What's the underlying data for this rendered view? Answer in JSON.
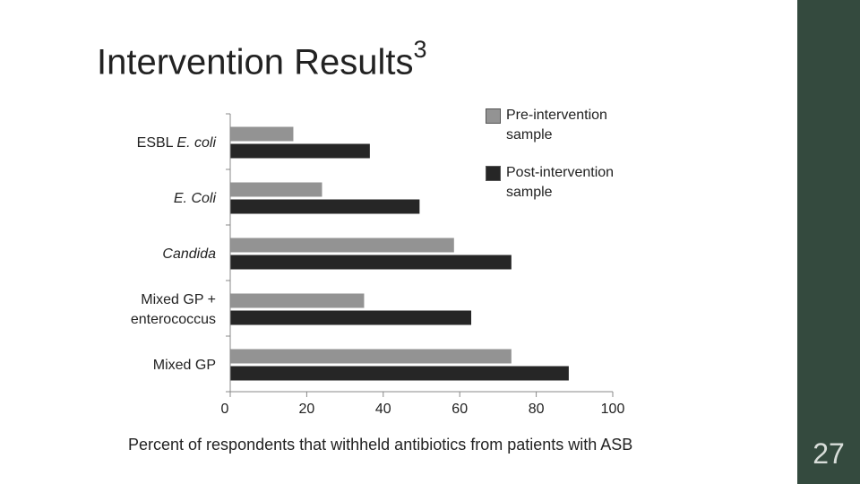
{
  "slide": {
    "title": "Intervention Results",
    "title_superscript": "3",
    "number": "27",
    "sidebar_color": "#344a3e"
  },
  "chart_data": {
    "type": "bar",
    "orientation": "horizontal",
    "categories": [
      {
        "parts": [
          {
            "text": "ESBL ",
            "italic": false
          },
          {
            "text": "E. coli",
            "italic": true
          }
        ]
      },
      {
        "parts": [
          {
            "text": "E. Coli",
            "italic": true
          }
        ]
      },
      {
        "parts": [
          {
            "text": "Candida",
            "italic": true
          }
        ]
      },
      {
        "parts": [
          {
            "text": "Mixed GP +",
            "italic": false
          },
          {
            "text": "enterococcus",
            "italic": false,
            "newline": true
          }
        ]
      },
      {
        "parts": [
          {
            "text": "Mixed GP",
            "italic": false
          }
        ]
      }
    ],
    "series": [
      {
        "name": "Pre-intervention sample",
        "color": "#939393",
        "values": [
          16.5,
          24,
          58.5,
          35,
          73.5
        ]
      },
      {
        "name": "Post-intervention sample",
        "color": "#262626",
        "values": [
          36.5,
          49.5,
          73.5,
          63,
          88.5
        ]
      }
    ],
    "xlim": [
      0,
      100
    ],
    "xticks": [
      "0",
      "20",
      "40",
      "60",
      "80",
      "100"
    ],
    "xlabel": "Percent of respondents that withheld antibiotics from patients with ASB",
    "ylabel": "",
    "title": "",
    "legend": {
      "position": "top-right",
      "entries": [
        {
          "line1": "Pre-intervention",
          "line2": "sample"
        },
        {
          "line1": "Post-intervention",
          "line2": "sample"
        }
      ]
    },
    "grid": false
  }
}
